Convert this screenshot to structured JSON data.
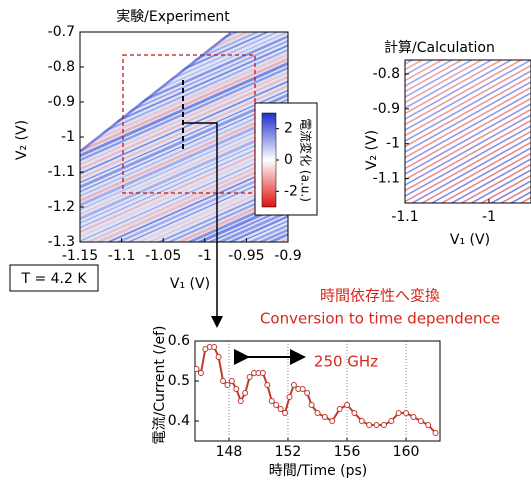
{
  "chart_data": [
    {
      "type": "heatmap",
      "title": "実験/Experiment",
      "xlabel": "V₁ (V)",
      "ylabel": "V₂ (V)",
      "xlim": [
        -1.15,
        -0.9
      ],
      "xticks": [
        -1.15,
        -1.1,
        -1.05,
        -1,
        -0.95,
        -0.9
      ],
      "ylim": [
        -1.3,
        -0.7
      ],
      "yticks": [
        -1.3,
        -1.2,
        -1.1,
        -1,
        -0.9,
        -0.8,
        -0.7
      ],
      "colorbar": {
        "label": "電流変化 (a.u.)",
        "lim": [
          -3,
          3
        ],
        "ticks": [
          2,
          0,
          -2
        ]
      },
      "annotation": "T = 4.2 K"
    },
    {
      "type": "heatmap",
      "title": "計算/Calculation",
      "xlabel": "V₁ (V)",
      "ylabel": "V₂ (V)",
      "xlim": [
        -1.1,
        -0.95
      ],
      "xticks": [
        -1.1,
        -1
      ],
      "ylim": [
        -1.17,
        -0.76
      ],
      "yticks": [
        -1.1,
        -1,
        -0.9,
        -0.8
      ]
    },
    {
      "type": "line",
      "title": "時間依存性へ変換",
      "subtitle": "Conversion to time dependence",
      "annotation": "250 GHz",
      "xlabel": "時間/Time (ps)",
      "ylabel": "電流/Current (/ef)",
      "xlim": [
        145.7,
        162.3
      ],
      "xticks": [
        148,
        152,
        156,
        160
      ],
      "ylim": [
        0.35,
        0.6
      ],
      "yticks": [
        0.4,
        0.5,
        0.6
      ],
      "grid": true,
      "color": "#c0392b",
      "x": [
        145.8,
        146.1,
        146.4,
        146.7,
        147.0,
        147.3,
        147.6,
        147.9,
        148.2,
        148.5,
        148.8,
        149.1,
        149.4,
        149.7,
        150.0,
        150.3,
        150.6,
        150.9,
        151.2,
        151.5,
        151.8,
        152.1,
        152.4,
        152.7,
        153.0,
        153.3,
        153.6,
        154.0,
        154.5,
        155.0,
        155.5,
        156.0,
        156.5,
        157.0,
        157.5,
        158.0,
        158.5,
        159.0,
        159.5,
        160.0,
        160.5,
        161.0,
        161.5,
        162.0
      ],
      "values": [
        0.53,
        0.52,
        0.58,
        0.585,
        0.585,
        0.56,
        0.5,
        0.49,
        0.5,
        0.48,
        0.45,
        0.47,
        0.51,
        0.52,
        0.52,
        0.52,
        0.49,
        0.45,
        0.44,
        0.43,
        0.42,
        0.46,
        0.49,
        0.48,
        0.48,
        0.47,
        0.44,
        0.42,
        0.41,
        0.4,
        0.43,
        0.44,
        0.42,
        0.4,
        0.39,
        0.39,
        0.39,
        0.4,
        0.42,
        0.42,
        0.41,
        0.4,
        0.39,
        0.37
      ]
    }
  ]
}
